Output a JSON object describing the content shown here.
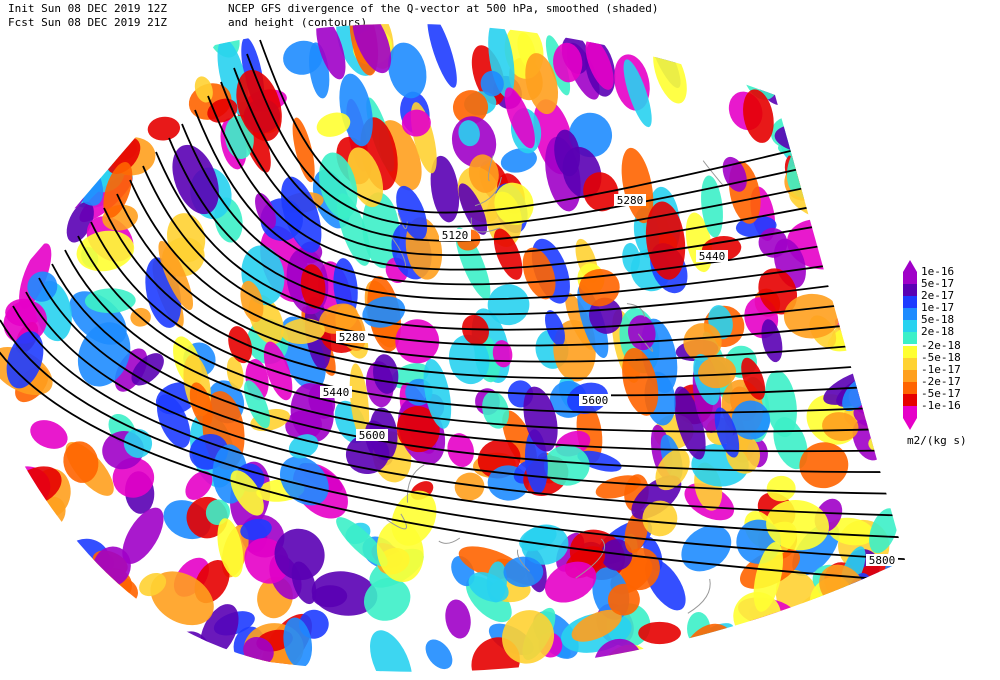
{
  "header": {
    "init": "Init  Sun 08 DEC 2019 12Z",
    "fcst": "Fcst Sun 08 DEC 2019 21Z",
    "title_line1": "NCEP GFS divergence of the Q-vector at 500 hPa, smoothed (shaded)",
    "title_line2": "and height (contours)"
  },
  "map": {
    "contour_labels": [
      "5120",
      "5280",
      "5440",
      "5280",
      "5440",
      "5600",
      "5600",
      "5800"
    ]
  },
  "legend": {
    "units": "m2/(kg s)",
    "entries": [
      {
        "label": "1e-16",
        "color": "#a000c8"
      },
      {
        "label": "5e-17",
        "color": "#5a00b4"
      },
      {
        "label": "2e-17",
        "color": "#1e3cff"
      },
      {
        "label": "1e-17",
        "color": "#1e8cff"
      },
      {
        "label": "5e-18",
        "color": "#28d2f0"
      },
      {
        "label": "2e-18",
        "color": "#3cf0c8"
      },
      {
        "label": "-2e-18",
        "color": "#ffff32"
      },
      {
        "label": "-5e-18",
        "color": "#ffd232"
      },
      {
        "label": "-1e-17",
        "color": "#ffa01e"
      },
      {
        "label": "-2e-17",
        "color": "#ff6400"
      },
      {
        "label": "-5e-17",
        "color": "#e60000"
      },
      {
        "label": "-1e-16",
        "color": "#e600c8"
      }
    ]
  }
}
